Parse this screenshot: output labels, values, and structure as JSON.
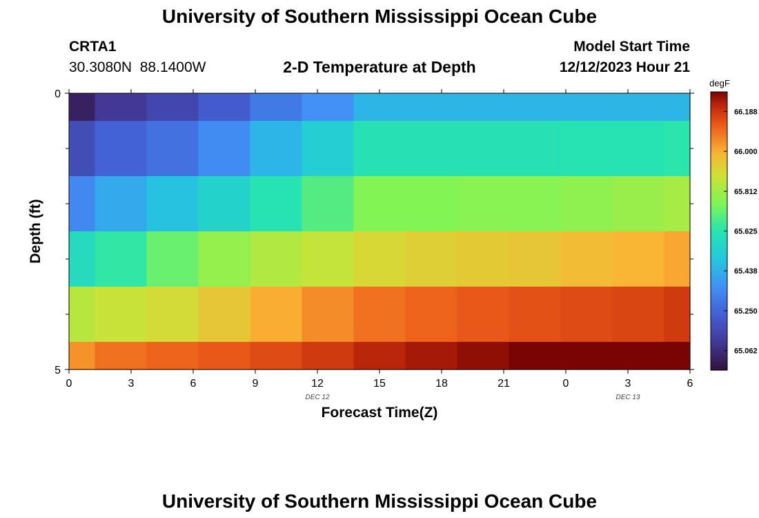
{
  "page": {
    "title_top": "University of Southern Mississippi Ocean Cube",
    "title_bottom": "University of Southern Mississippi Ocean Cube",
    "station": "CRTA1",
    "lat": "30.3080N",
    "lon": "88.1400W",
    "plot_title": "2-D Temperature at Depth",
    "model_label": "Model Start Time",
    "model_time": "12/12/2023 Hour 21"
  },
  "chart_data": {
    "type": "heatmap",
    "title": "2-D Temperature at Depth",
    "xlabel": "Forecast Time(Z)",
    "ylabel": "Depth (ft)",
    "x_hours": [
      0,
      3,
      6,
      9,
      12,
      15,
      18,
      21,
      24,
      27,
      30
    ],
    "x_tick_labels": [
      "0",
      "3",
      "6",
      "9",
      "12",
      "15",
      "18",
      "21",
      "0",
      "3",
      "6"
    ],
    "x_range": [
      0,
      30
    ],
    "date_labels": [
      {
        "hour": 12,
        "text": "DEC 12"
      },
      {
        "hour": 27,
        "text": "DEC 13"
      }
    ],
    "y_range": [
      0,
      5
    ],
    "y_tick_labels": [
      {
        "value": 0,
        "text": "0"
      },
      {
        "value": 5,
        "text": "5"
      }
    ],
    "y_minor_ticks": [
      1,
      2,
      3,
      4
    ],
    "column_edges": [
      0,
      1.25,
      3.75,
      6.25,
      8.75,
      11.25,
      13.75,
      16.25,
      18.75,
      21.25,
      23.75,
      26.25,
      28.75,
      30
    ],
    "row_edges": [
      0,
      0.5,
      1.5,
      2.5,
      3.5,
      4.5,
      5
    ],
    "values": [
      [
        65.02,
        65.1,
        65.15,
        65.22,
        65.3,
        65.36,
        65.45,
        65.45,
        65.45,
        65.45,
        65.45,
        65.45,
        65.45,
        65.45
      ],
      [
        65.17,
        65.24,
        65.28,
        65.35,
        65.45,
        65.52,
        65.61,
        65.61,
        65.61,
        65.61,
        65.62,
        65.62,
        65.63,
        65.64
      ],
      [
        65.34,
        65.42,
        65.48,
        65.54,
        65.62,
        65.69,
        65.76,
        65.76,
        65.77,
        65.77,
        65.78,
        65.8,
        65.82,
        65.84
      ],
      [
        65.58,
        65.64,
        65.72,
        65.79,
        65.84,
        65.87,
        65.91,
        65.93,
        65.94,
        65.95,
        65.97,
        65.99,
        66.01,
        66.04
      ],
      [
        65.85,
        65.88,
        65.9,
        65.95,
        66.0,
        66.05,
        66.09,
        66.11,
        66.13,
        66.14,
        66.15,
        66.16,
        66.18,
        66.2
      ],
      [
        66.04,
        66.09,
        66.11,
        66.13,
        66.15,
        66.18,
        66.22,
        66.24,
        66.26,
        66.28,
        66.29,
        66.31,
        66.33,
        66.36
      ]
    ],
    "colorbar": {
      "unit": "degF",
      "min": 64.97,
      "max": 66.28,
      "tick_labels": [
        "66.188",
        "66.000",
        "65.812",
        "65.625",
        "65.438",
        "65.250",
        "65.062"
      ]
    }
  }
}
